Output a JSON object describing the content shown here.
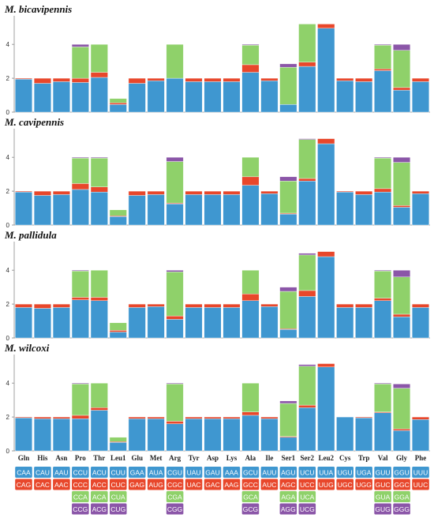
{
  "chart_data": {
    "type": "stacked-bar",
    "categories": [
      "Gln",
      "His",
      "Asn",
      "Pro",
      "Thr",
      "Leu1",
      "Glu",
      "Met",
      "Arg",
      "Tyr",
      "Asp",
      "Lys",
      "Ala",
      "Ile",
      "Ser1",
      "Ser2",
      "Leu2",
      "Cys",
      "Trp",
      "Val",
      "Gly",
      "Phe"
    ],
    "ylim": [
      0,
      5.5
    ],
    "yticks": [
      0,
      2,
      4
    ],
    "colors": [
      "#3f97d0",
      "#e8472b",
      "#8fd16a",
      "#8b56a8"
    ],
    "codons": [
      [
        "CAA",
        "CAG"
      ],
      [
        "CAU",
        "CAC"
      ],
      [
        "AAU",
        "AAC"
      ],
      [
        "CCU",
        "CCC",
        "CCA",
        "CCG"
      ],
      [
        "ACU",
        "ACC",
        "ACA",
        "ACG"
      ],
      [
        "CUU",
        "CUC",
        "CUA",
        "CUG"
      ],
      [
        "GAA",
        "GAG"
      ],
      [
        "AUA",
        "AUG"
      ],
      [
        "CGU",
        "CGC",
        "CGA",
        "CGG"
      ],
      [
        "UAU",
        "UAC"
      ],
      [
        "GAU",
        "GAC"
      ],
      [
        "AAA",
        "AAG"
      ],
      [
        "GCU",
        "GCC",
        "GCA",
        "GCG"
      ],
      [
        "AUU",
        "AUC"
      ],
      [
        "AGU",
        "AGC",
        "AGA",
        "AGG"
      ],
      [
        "UCU",
        "UCC",
        "UCA",
        "UCG"
      ],
      [
        "UUA",
        "UUG"
      ],
      [
        "UGU",
        "UGC"
      ],
      [
        "UGA",
        "UGG"
      ],
      [
        "GUU",
        "GUC",
        "GUA",
        "GUG"
      ],
      [
        "GGU",
        "GGC",
        "GGA",
        "GGG"
      ],
      [
        "UUU",
        "UUC"
      ]
    ],
    "panels": [
      {
        "title": "M. bicavipennis",
        "stacks": [
          [
            1.95,
            0.05
          ],
          [
            1.7,
            0.3
          ],
          [
            1.8,
            0.2
          ],
          [
            1.75,
            0.25,
            1.85,
            0.15
          ],
          [
            2.05,
            0.3,
            1.65,
            0
          ],
          [
            0.45,
            0.1,
            0.25,
            0
          ],
          [
            1.7,
            0.3
          ],
          [
            1.85,
            0.15
          ],
          [
            2.0,
            0,
            2.0,
            0
          ],
          [
            1.8,
            0.2
          ],
          [
            1.8,
            0.2
          ],
          [
            1.8,
            0.2
          ],
          [
            2.35,
            0.45,
            1.15,
            0.05
          ],
          [
            1.85,
            0.15
          ],
          [
            0.45,
            0,
            2.2,
            0.2
          ],
          [
            2.7,
            0.25,
            2.25,
            0
          ],
          [
            4.95,
            0.25
          ],
          [
            1.85,
            0.15
          ],
          [
            1.8,
            0.2
          ],
          [
            2.45,
            0.1,
            1.4,
            0.05
          ],
          [
            1.3,
            0.15,
            2.2,
            0.35
          ],
          [
            1.8,
            0.2
          ]
        ]
      },
      {
        "title": "M. cavipennis",
        "stacks": [
          [
            1.95,
            0.05
          ],
          [
            1.75,
            0.25
          ],
          [
            1.8,
            0.2
          ],
          [
            2.1,
            0.35,
            1.5,
            0.05
          ],
          [
            1.95,
            0.3,
            1.7,
            0.05
          ],
          [
            0.5,
            0.05,
            0.35,
            0
          ],
          [
            1.75,
            0.25
          ],
          [
            1.8,
            0.2
          ],
          [
            1.25,
            0.05,
            2.45,
            0.25
          ],
          [
            1.8,
            0.2
          ],
          [
            1.8,
            0.2
          ],
          [
            1.8,
            0.2
          ],
          [
            2.35,
            0.5,
            1.15,
            0
          ],
          [
            1.85,
            0.15
          ],
          [
            0.65,
            0.05,
            1.9,
            0.25
          ],
          [
            2.6,
            0.15,
            2.3,
            0.05
          ],
          [
            4.8,
            0.3
          ],
          [
            1.95,
            0.05
          ],
          [
            1.8,
            0.2
          ],
          [
            1.95,
            0.2,
            1.8,
            0.05
          ],
          [
            1.05,
            0.1,
            2.55,
            0.3
          ],
          [
            1.85,
            0.15
          ]
        ]
      },
      {
        "title": "M. pallidula",
        "stacks": [
          [
            1.8,
            0.2
          ],
          [
            1.75,
            0.25
          ],
          [
            1.8,
            0.2
          ],
          [
            2.25,
            0.15,
            1.55,
            0.05
          ],
          [
            2.2,
            0.2,
            1.6,
            0
          ],
          [
            0.35,
            0.1,
            0.45,
            0
          ],
          [
            1.8,
            0.2
          ],
          [
            1.85,
            0.15
          ],
          [
            1.1,
            0.2,
            2.6,
            0.1
          ],
          [
            1.8,
            0.2
          ],
          [
            1.8,
            0.2
          ],
          [
            1.8,
            0.2
          ],
          [
            2.2,
            0.4,
            1.4,
            0
          ],
          [
            1.85,
            0.15
          ],
          [
            0.5,
            0.05,
            2.2,
            0.25
          ],
          [
            2.45,
            0.35,
            2.1,
            0.1
          ],
          [
            4.8,
            0.3
          ],
          [
            1.8,
            0.2
          ],
          [
            1.8,
            0.2
          ],
          [
            2.2,
            0.15,
            1.6,
            0.05
          ],
          [
            1.25,
            0.15,
            2.2,
            0.4
          ],
          [
            1.8,
            0.2
          ]
        ]
      },
      {
        "title": "M. wilcoxi",
        "stacks": [
          [
            1.95,
            0.05
          ],
          [
            1.9,
            0.1
          ],
          [
            1.9,
            0.1
          ],
          [
            1.9,
            0.2,
            1.85,
            0.05
          ],
          [
            2.4,
            0.15,
            1.45,
            0
          ],
          [
            0.5,
            0.05,
            0.25,
            0
          ],
          [
            1.9,
            0.1
          ],
          [
            1.9,
            0.1
          ],
          [
            1.6,
            0.15,
            2.2,
            0.05
          ],
          [
            1.9,
            0.1
          ],
          [
            1.9,
            0.1
          ],
          [
            1.9,
            0.1
          ],
          [
            2.1,
            0.2,
            1.7,
            0
          ],
          [
            1.9,
            0.1
          ],
          [
            0.8,
            0.05,
            1.95,
            0.15
          ],
          [
            2.55,
            0.15,
            2.3,
            0.1
          ],
          [
            4.95,
            0.2
          ],
          [
            2.0,
            0
          ],
          [
            1.95,
            0.05
          ],
          [
            2.25,
            0.05,
            1.65,
            0.05
          ],
          [
            1.2,
            0.1,
            2.4,
            0.25
          ],
          [
            1.85,
            0.15
          ]
        ]
      }
    ]
  }
}
